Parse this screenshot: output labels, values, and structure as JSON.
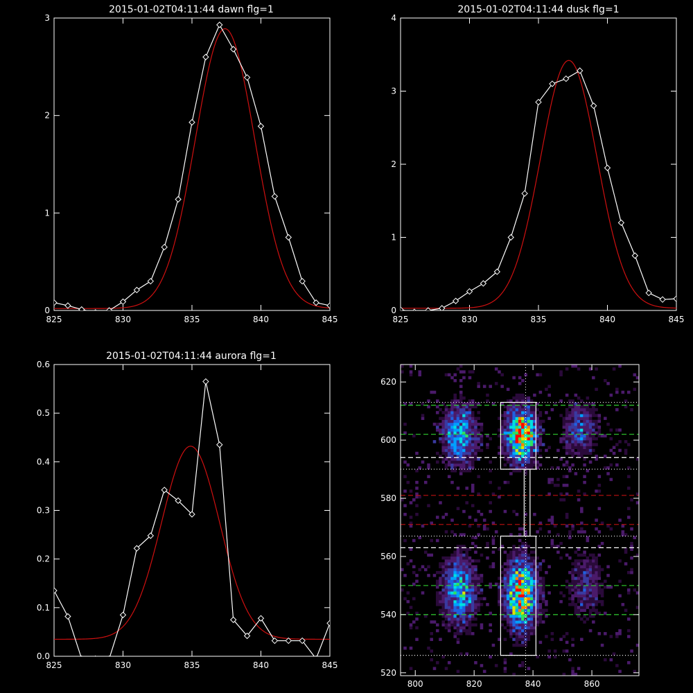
{
  "chart_data": [
    {
      "type": "line",
      "title": "2015-01-02T04:11:44 dawn flg=1",
      "xlim": [
        825,
        845
      ],
      "ylim": [
        0,
        3
      ],
      "xticks": [
        825,
        830,
        835,
        840,
        845
      ],
      "yticks": [
        0,
        1,
        2,
        3
      ],
      "grid": false,
      "series": [
        {
          "style": "white-line-diamond",
          "color": "#ffffff",
          "x": [
            825,
            826,
            827,
            828,
            829,
            830,
            831,
            832,
            833,
            834,
            835,
            836,
            837,
            838,
            839,
            840,
            841,
            842,
            843,
            844,
            845
          ],
          "y": [
            0.08,
            0.05,
            0.01,
            -0.02,
            0.0,
            0.09,
            0.21,
            0.3,
            0.65,
            1.14,
            1.93,
            2.6,
            2.93,
            2.68,
            2.39,
            1.89,
            1.17,
            0.75,
            0.3,
            0.08,
            0.05
          ]
        },
        {
          "style": "red-fit",
          "color": "#d01010",
          "fit": {
            "amp": 2.87,
            "center": 837.4,
            "sigma": 2.15,
            "offset": 0.02
          }
        }
      ]
    },
    {
      "type": "line",
      "title": "2015-01-02T04:11:44 dusk flg=1",
      "xlim": [
        825,
        845
      ],
      "ylim": [
        0,
        4
      ],
      "xticks": [
        825,
        830,
        835,
        840,
        845
      ],
      "yticks": [
        0,
        1,
        2,
        3,
        4
      ],
      "grid": false,
      "series": [
        {
          "style": "white-line-diamond",
          "color": "#ffffff",
          "x": [
            825,
            826,
            827,
            828,
            829,
            830,
            831,
            832,
            833,
            834,
            835,
            836,
            837,
            838,
            839,
            840,
            841,
            842,
            843,
            844,
            845
          ],
          "y": [
            0.01,
            -0.02,
            0.0,
            0.03,
            0.13,
            0.26,
            0.37,
            0.53,
            1.0,
            1.6,
            2.85,
            3.1,
            3.17,
            3.28,
            2.8,
            1.95,
            1.2,
            0.75,
            0.24,
            0.15,
            0.16
          ]
        },
        {
          "style": "red-fit",
          "color": "#d01010",
          "fit": {
            "amp": 3.39,
            "center": 837.2,
            "sigma": 2.05,
            "offset": 0.03
          }
        }
      ]
    },
    {
      "type": "line",
      "title": "2015-01-02T04:11:44 aurora flg=1",
      "xlim": [
        825,
        845
      ],
      "ylim": [
        0,
        0.6
      ],
      "xticks": [
        825,
        830,
        835,
        840,
        845
      ],
      "yticks": [
        0.0,
        0.1,
        0.2,
        0.3,
        0.4,
        0.5,
        0.6
      ],
      "grid": false,
      "series": [
        {
          "style": "white-line-diamond",
          "color": "#ffffff",
          "x": [
            825,
            826,
            827,
            828,
            829,
            830,
            831,
            832,
            833,
            834,
            835,
            836,
            837,
            838,
            839,
            840,
            841,
            842,
            843,
            844,
            845
          ],
          "y": [
            0.135,
            0.082,
            -0.005,
            -0.005,
            -0.005,
            0.085,
            0.222,
            0.248,
            0.342,
            0.32,
            0.292,
            0.565,
            0.435,
            0.075,
            0.042,
            0.078,
            0.032,
            0.032,
            0.032,
            -0.005,
            0.068
          ]
        },
        {
          "style": "red-fit",
          "color": "#d01010",
          "fit": {
            "amp": 0.397,
            "center": 834.9,
            "sigma": 2.1,
            "offset": 0.035
          }
        }
      ]
    },
    {
      "type": "heatmap",
      "xlim": [
        795,
        876
      ],
      "ylim": [
        519,
        626
      ],
      "xticks": [
        800,
        820,
        840,
        860
      ],
      "yticks": [
        520,
        540,
        560,
        580,
        600,
        620
      ],
      "colormap": [
        "#000000",
        "#2a0a3a",
        "#4a1a6a",
        "#3a3aa0",
        "#2060e0",
        "#00a0ff",
        "#00e0e0",
        "#30e060",
        "#e0e000",
        "#ff8000",
        "#ff0000"
      ],
      "blobs": [
        {
          "cx": 836,
          "cy": 602,
          "sx": 3.5,
          "sy": 6,
          "amp": 1.0
        },
        {
          "cx": 836,
          "cy": 547,
          "sx": 3.5,
          "sy": 8,
          "amp": 0.95
        },
        {
          "cx": 815,
          "cy": 602,
          "sx": 4,
          "sy": 7,
          "amp": 0.55
        },
        {
          "cx": 815,
          "cy": 548,
          "sx": 4,
          "sy": 8,
          "amp": 0.55
        },
        {
          "cx": 856,
          "cy": 604,
          "sx": 4,
          "sy": 6,
          "amp": 0.35
        },
        {
          "cx": 858,
          "cy": 550,
          "sx": 4,
          "sy": 8,
          "amp": 0.25
        }
      ],
      "hlines_white_dotted": [
        613,
        590,
        567,
        526
      ],
      "hlines_white_dashed": [
        594,
        563
      ],
      "hlines_green_dashed": [
        612,
        602,
        550,
        540
      ],
      "hlines_red_dashed": [
        581,
        571
      ],
      "vline_white_dotted": 837.5,
      "boxes": [
        {
          "x0": 829,
          "x1": 841,
          "y0": 590,
          "y1": 613
        },
        {
          "x0": 829,
          "x1": 841,
          "y0": 526,
          "y1": 567
        },
        {
          "x0": 837,
          "x1": 839,
          "y0": 567,
          "y1": 590
        }
      ]
    }
  ]
}
